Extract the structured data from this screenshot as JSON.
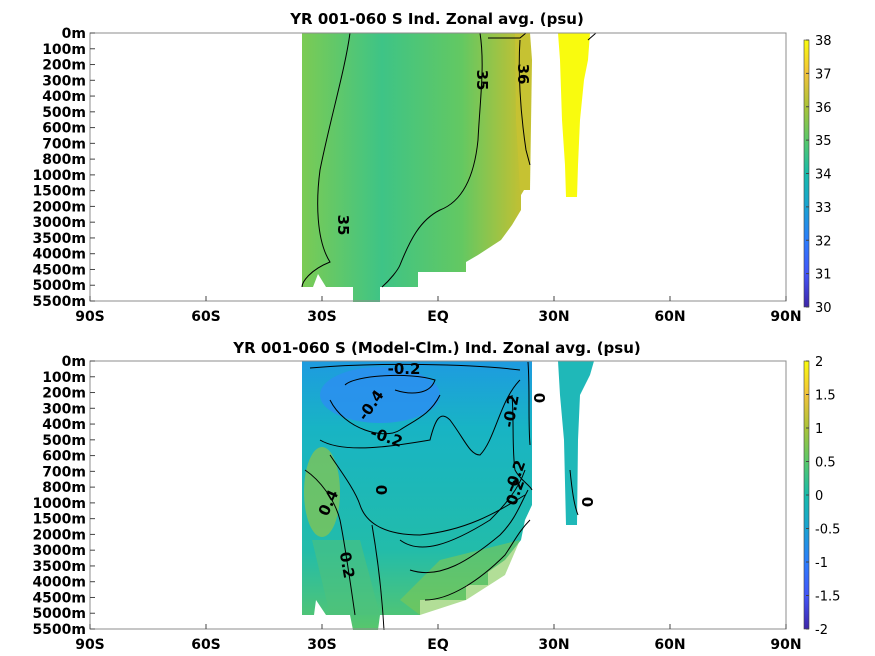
{
  "chart_data": [
    {
      "type": "heatmap",
      "title": "YR 001-060 S Ind. Zonal avg. (psu)",
      "xlabel": "",
      "ylabel": "",
      "x_ticks": [
        "90S",
        "60S",
        "30S",
        "EQ",
        "30N",
        "60N",
        "90N"
      ],
      "x_values": [
        -90,
        -60,
        -30,
        0,
        30,
        60,
        90
      ],
      "xlim": [
        -90,
        90
      ],
      "y_ticks": [
        "0m",
        "100m",
        "200m",
        "300m",
        "400m",
        "500m",
        "600m",
        "700m",
        "800m",
        "1000m",
        "1500m",
        "2000m",
        "3000m",
        "3500m",
        "4000m",
        "4500m",
        "5000m",
        "5500m"
      ],
      "colorbar": {
        "ticks": [
          "30",
          "31",
          "32",
          "33",
          "34",
          "35",
          "36",
          "37",
          "38"
        ],
        "range": [
          30,
          38
        ]
      },
      "contour_labels": [
        "35",
        "36",
        "35"
      ],
      "data_extent_lat": [
        -35,
        40
      ],
      "background_value": 35,
      "grid": false
    },
    {
      "type": "heatmap",
      "title": "YR 001-060 S (Model-Clm.) Ind. Zonal avg. (psu)",
      "xlabel": "",
      "ylabel": "",
      "x_ticks": [
        "90S",
        "60S",
        "30S",
        "EQ",
        "30N",
        "60N",
        "90N"
      ],
      "x_values": [
        -90,
        -60,
        -30,
        0,
        30,
        60,
        90
      ],
      "xlim": [
        -90,
        90
      ],
      "y_ticks": [
        "0m",
        "100m",
        "200m",
        "300m",
        "400m",
        "500m",
        "600m",
        "700m",
        "800m",
        "1000m",
        "1500m",
        "2000m",
        "3000m",
        "3500m",
        "4000m",
        "4500m",
        "5000m",
        "5500m"
      ],
      "colorbar": {
        "ticks": [
          "2",
          "1.5",
          "1",
          "0.5",
          "0",
          "-0.5",
          "-1",
          "-1.5",
          "-2"
        ],
        "range": [
          -2,
          2
        ]
      },
      "contour_labels": [
        "-0.2",
        "-0.4",
        "-0.2",
        "-0.2",
        "0",
        "0.4",
        "0",
        "-0.2",
        "0.2",
        "0.2",
        "0"
      ],
      "data_extent_lat": [
        -35,
        40
      ],
      "background_value": -0.2,
      "grid": false
    }
  ]
}
